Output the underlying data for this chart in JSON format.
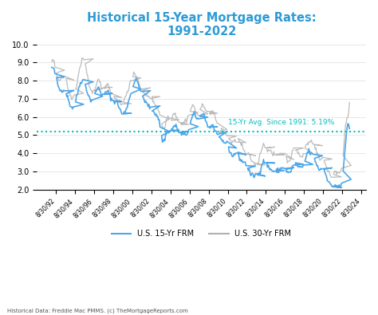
{
  "title_line1": "Historical 15-Year Mortgage Rates:",
  "title_line2": "1991-2022",
  "title_color": "#2E9BD6",
  "avg_line_value": 5.19,
  "avg_label": "15-Yr Avg. Since 1991: 5.19%",
  "avg_color": "#00BFBF",
  "color_15yr": "#4da6e8",
  "color_30yr": "#b0b0b0",
  "ylim": [
    2.0,
    10.0
  ],
  "yticks": [
    2.0,
    3.0,
    4.0,
    5.0,
    6.0,
    7.0,
    8.0,
    9.0,
    10.0
  ],
  "legend_15yr": "U.S. 15-Yr FRM",
  "legend_30yr": "U.S. 30-Yr FRM",
  "footnote": "Historical Data: Freddie Mac PMMS. (c) TheMortgageReports.com",
  "bg_color": "#ffffff",
  "plot_bg": "#ffffff",
  "grid_color": "#dddddd"
}
